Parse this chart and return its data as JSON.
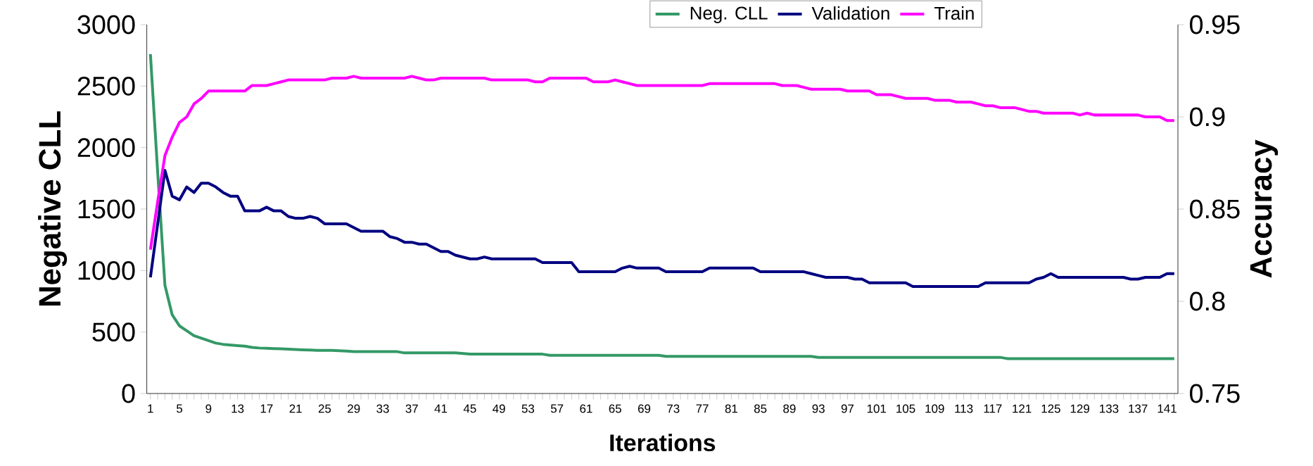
{
  "chart_data": {
    "type": "line",
    "xlabel": "Iterations",
    "ylabel": "Negative CLL",
    "y2label": "Accuracy",
    "categories": [
      "1",
      null,
      null,
      null,
      "5",
      null,
      null,
      null,
      "9",
      null,
      null,
      null,
      "13",
      null,
      null,
      null,
      "17",
      null,
      null,
      null,
      "21",
      null,
      null,
      null,
      "25",
      null,
      null,
      null,
      "29",
      null,
      null,
      null,
      "33",
      null,
      null,
      null,
      "37",
      null,
      null,
      null,
      "41",
      null,
      null,
      null,
      "45",
      null,
      null,
      null,
      "49",
      null,
      null,
      null,
      "53",
      null,
      null,
      null,
      "57",
      null,
      null,
      null,
      "61",
      null,
      null,
      null,
      "65",
      null,
      null,
      null,
      "69",
      null,
      null,
      null,
      "73",
      null,
      null,
      null,
      "77",
      null,
      null,
      null,
      "81",
      null,
      null,
      null,
      "85",
      null,
      null,
      null,
      "89",
      null,
      null,
      null,
      "93",
      null,
      null,
      null,
      "97",
      null,
      null,
      null,
      "101",
      null,
      null,
      null,
      "105",
      null,
      null,
      null,
      "109",
      null,
      null,
      null,
      "113",
      null,
      null,
      null,
      "117",
      null,
      null,
      null,
      "121",
      null,
      null,
      null,
      "125",
      null,
      null,
      null,
      "129",
      null,
      null,
      null,
      "133",
      null,
      null,
      null,
      "137",
      null,
      null,
      null,
      "141",
      null
    ],
    "ylim": [
      0,
      3000
    ],
    "yticks": [
      0,
      500,
      1000,
      1500,
      2000,
      2500,
      3000
    ],
    "y2lim": [
      0.75,
      0.95
    ],
    "y2ticks": [
      0.75,
      0.8,
      0.85,
      0.9,
      0.95
    ],
    "legend": "top right",
    "series": [
      {
        "name": "Neg. CLL",
        "color": "#339966",
        "values": [
          2760,
          1800,
          880,
          640,
          550,
          510,
          470,
          450,
          430,
          410,
          400,
          395,
          390,
          385,
          375,
          370,
          368,
          365,
          363,
          360,
          358,
          355,
          353,
          350,
          350,
          350,
          348,
          345,
          340,
          340,
          340,
          340,
          340,
          340,
          340,
          330,
          330,
          330,
          330,
          330,
          330,
          330,
          330,
          325,
          320,
          320,
          320,
          320,
          320,
          320,
          320,
          320,
          320,
          320,
          320,
          311,
          311,
          311,
          311,
          311,
          311,
          311,
          311,
          311,
          311,
          311,
          311,
          311,
          311,
          311,
          311,
          302,
          302,
          302,
          302,
          302,
          302,
          302,
          302,
          302,
          302,
          302,
          302,
          302,
          302,
          302,
          302,
          302,
          302,
          302,
          302,
          302,
          294,
          294,
          294,
          294,
          294,
          294,
          294,
          294,
          294,
          294,
          294,
          294,
          294,
          294,
          294,
          294,
          294,
          294,
          294,
          294,
          294,
          294,
          294,
          294,
          294,
          294,
          284,
          284,
          284,
          284,
          284,
          284,
          284,
          284,
          284,
          284,
          284,
          284,
          284,
          284,
          284,
          284,
          284,
          284,
          284,
          284,
          284,
          284,
          284,
          284
        ]
      },
      {
        "name": "Validation",
        "color": "#000080",
        "axis": "y2",
        "values": [
          0.813,
          0.842,
          0.871,
          0.857,
          0.855,
          0.862,
          0.859,
          0.864,
          0.864,
          0.862,
          0.859,
          0.857,
          0.857,
          0.849,
          0.849,
          0.849,
          0.851,
          0.849,
          0.849,
          0.846,
          0.845,
          0.845,
          0.846,
          0.845,
          0.842,
          0.842,
          0.842,
          0.842,
          0.84,
          0.838,
          0.838,
          0.838,
          0.838,
          0.835,
          0.834,
          0.832,
          0.832,
          0.831,
          0.831,
          0.829,
          0.827,
          0.827,
          0.825,
          0.824,
          0.823,
          0.823,
          0.824,
          0.823,
          0.823,
          0.823,
          0.823,
          0.823,
          0.823,
          0.823,
          0.821,
          0.821,
          0.821,
          0.821,
          0.821,
          0.816,
          0.816,
          0.816,
          0.816,
          0.816,
          0.816,
          0.818,
          0.819,
          0.818,
          0.818,
          0.818,
          0.818,
          0.816,
          0.816,
          0.816,
          0.816,
          0.816,
          0.816,
          0.818,
          0.818,
          0.818,
          0.818,
          0.818,
          0.818,
          0.818,
          0.816,
          0.816,
          0.816,
          0.816,
          0.816,
          0.816,
          0.816,
          0.815,
          0.814,
          0.813,
          0.813,
          0.813,
          0.813,
          0.812,
          0.812,
          0.81,
          0.81,
          0.81,
          0.81,
          0.81,
          0.81,
          0.808,
          0.808,
          0.808,
          0.808,
          0.808,
          0.808,
          0.808,
          0.808,
          0.808,
          0.808,
          0.81,
          0.81,
          0.81,
          0.81,
          0.81,
          0.81,
          0.81,
          0.812,
          0.813,
          0.815,
          0.813,
          0.813,
          0.813,
          0.813,
          0.813,
          0.813,
          0.813,
          0.813,
          0.813,
          0.813,
          0.812,
          0.812,
          0.813,
          0.813,
          0.813,
          0.815,
          0.815
        ]
      },
      {
        "name": "Train",
        "color": "#ff00ff",
        "axis": "y2",
        "values": [
          0.828,
          0.854,
          0.879,
          0.889,
          0.897,
          0.9,
          0.907,
          0.91,
          0.914,
          0.914,
          0.914,
          0.914,
          0.914,
          0.914,
          0.917,
          0.917,
          0.917,
          0.918,
          0.919,
          0.92,
          0.92,
          0.92,
          0.92,
          0.92,
          0.92,
          0.921,
          0.921,
          0.921,
          0.922,
          0.921,
          0.921,
          0.921,
          0.921,
          0.921,
          0.921,
          0.921,
          0.922,
          0.921,
          0.92,
          0.92,
          0.921,
          0.921,
          0.921,
          0.921,
          0.921,
          0.921,
          0.921,
          0.92,
          0.92,
          0.92,
          0.92,
          0.92,
          0.92,
          0.919,
          0.919,
          0.921,
          0.921,
          0.921,
          0.921,
          0.921,
          0.921,
          0.919,
          0.919,
          0.919,
          0.92,
          0.919,
          0.918,
          0.917,
          0.917,
          0.917,
          0.917,
          0.917,
          0.917,
          0.917,
          0.917,
          0.917,
          0.917,
          0.918,
          0.918,
          0.918,
          0.918,
          0.918,
          0.918,
          0.918,
          0.918,
          0.918,
          0.918,
          0.917,
          0.917,
          0.917,
          0.916,
          0.915,
          0.915,
          0.915,
          0.915,
          0.915,
          0.914,
          0.914,
          0.914,
          0.914,
          0.912,
          0.912,
          0.912,
          0.911,
          0.91,
          0.91,
          0.91,
          0.91,
          0.909,
          0.909,
          0.909,
          0.908,
          0.908,
          0.908,
          0.907,
          0.906,
          0.906,
          0.905,
          0.905,
          0.905,
          0.904,
          0.903,
          0.903,
          0.902,
          0.902,
          0.902,
          0.902,
          0.902,
          0.901,
          0.902,
          0.901,
          0.901,
          0.901,
          0.901,
          0.901,
          0.901,
          0.901,
          0.9,
          0.9,
          0.9,
          0.898,
          0.898
        ]
      }
    ]
  }
}
